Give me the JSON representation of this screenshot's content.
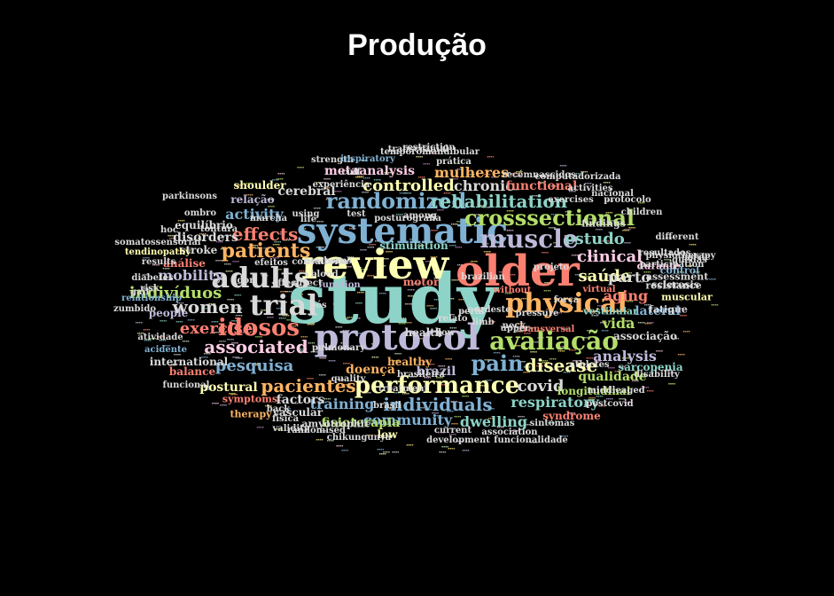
{
  "title": "Produção",
  "palette": {
    "teal": "#8dd3c7",
    "yellow": "#ffffb3",
    "lavender": "#bebada",
    "salmon": "#fb8072",
    "blue": "#80b1d3",
    "orange": "#fdb462",
    "green": "#b3de69",
    "pink": "#fccde5",
    "grey": "#d9d9d9",
    "purple": "#bc80bd",
    "mint": "#ccebc5",
    "gold": "#ffed6f"
  },
  "words": [
    {
      "text": "study",
      "color": "#8dd3c7"
    },
    {
      "text": "review",
      "color": "#ffffb3"
    },
    {
      "text": "older",
      "color": "#fb8072"
    },
    {
      "text": "systematic",
      "color": "#80b1d3"
    },
    {
      "text": "protocol",
      "color": "#bebada"
    },
    {
      "text": "adults",
      "color": "#d9d9d9"
    },
    {
      "text": "physical",
      "color": "#fdb462"
    },
    {
      "text": "avaliação",
      "color": "#b3de69"
    },
    {
      "text": "trial",
      "color": "#d9d9d9"
    },
    {
      "text": "muscle",
      "color": "#bebada"
    },
    {
      "text": "randomized",
      "color": "#80b1d3"
    },
    {
      "text": "crosssectional",
      "color": "#b3de69"
    },
    {
      "text": "performance",
      "color": "#ffffb3"
    },
    {
      "text": "idosos",
      "color": "#fb8072"
    },
    {
      "text": "patients",
      "color": "#fdb462"
    },
    {
      "text": "pain",
      "color": "#80b1d3"
    },
    {
      "text": "associated",
      "color": "#fccde5"
    },
    {
      "text": "rehabilitation",
      "color": "#8dd3c7"
    },
    {
      "text": "individuals",
      "color": "#80b1d3"
    },
    {
      "text": "disease",
      "color": "#ffffb3"
    },
    {
      "text": "clinical",
      "color": "#fccde5"
    },
    {
      "text": "effects",
      "color": "#fb8072"
    },
    {
      "text": "pacientes",
      "color": "#fdb462"
    },
    {
      "text": "controlled",
      "color": "#ffffb3"
    },
    {
      "text": "women",
      "color": "#d9d9d9"
    },
    {
      "text": "pesquisa",
      "color": "#80b1d3"
    },
    {
      "text": "covid",
      "color": "#d9d9d9"
    },
    {
      "text": "estudo",
      "color": "#8dd3c7"
    },
    {
      "text": "saúde",
      "color": "#ffffb3"
    },
    {
      "text": "indivíduos",
      "color": "#b3de69"
    },
    {
      "text": "activity",
      "color": "#80b1d3"
    },
    {
      "text": "exercise",
      "color": "#fb8072"
    },
    {
      "text": "mulheres",
      "color": "#fdb462"
    },
    {
      "text": "respiratory",
      "color": "#8dd3c7"
    },
    {
      "text": "community",
      "color": "#80b1d3"
    },
    {
      "text": "dwelling",
      "color": "#8dd3c7"
    },
    {
      "text": "training",
      "color": "#80b1d3"
    },
    {
      "text": "chronic",
      "color": "#d9d9d9"
    },
    {
      "text": "mobility",
      "color": "#bebada"
    },
    {
      "text": "analysis",
      "color": "#bebada"
    },
    {
      "text": "vida",
      "color": "#b3de69"
    },
    {
      "text": "parto",
      "color": "#d9d9d9"
    },
    {
      "text": "aging",
      "color": "#fb8072"
    },
    {
      "text": "factors",
      "color": "#d9d9d9"
    },
    {
      "text": "doença",
      "color": "#fdb462"
    },
    {
      "text": "cerebral",
      "color": "#d9d9d9"
    },
    {
      "text": "qualidade",
      "color": "#b3de69"
    },
    {
      "text": "fisioterapia",
      "color": "#b3de69"
    },
    {
      "text": "metaanalysis",
      "color": "#fccde5"
    },
    {
      "text": "disorders",
      "color": "#d9d9d9"
    },
    {
      "text": "postural",
      "color": "#ffffb3"
    },
    {
      "text": "lateral",
      "color": "#80b1d3"
    },
    {
      "text": "functional",
      "color": "#fb8072"
    },
    {
      "text": "brazil",
      "color": "#bebada"
    },
    {
      "text": "health",
      "color": "#d9d9d9"
    },
    {
      "text": "people",
      "color": "#bebada"
    },
    {
      "text": "stroke",
      "color": "#d9d9d9"
    },
    {
      "text": "análise",
      "color": "#fb8072"
    },
    {
      "text": "relação",
      "color": "#bebada"
    },
    {
      "text": "equilíbrio",
      "color": "#d9d9d9"
    },
    {
      "text": "shoulder",
      "color": "#ffffb3"
    },
    {
      "text": "associação",
      "color": "#d9d9d9"
    },
    {
      "text": "longitudinal",
      "color": "#b3de69"
    },
    {
      "text": "syndrome",
      "color": "#fb8072"
    },
    {
      "text": "sarcopenia",
      "color": "#8dd3c7"
    },
    {
      "text": "stimulation",
      "color": "#8dd3c7"
    },
    {
      "text": "healthy",
      "color": "#fdb462"
    },
    {
      "text": "motor",
      "color": "#fb8072"
    },
    {
      "text": "low",
      "color": "#ffffb3"
    },
    {
      "text": "amyotrophic",
      "color": "#d9d9d9"
    },
    {
      "text": "vascular",
      "color": "#d9d9d9"
    },
    {
      "text": "international",
      "color": "#d9d9d9"
    },
    {
      "text": "balance",
      "color": "#fb8072"
    },
    {
      "text": "symptoms",
      "color": "#fb8072"
    },
    {
      "text": "therapy",
      "color": "#fdb462"
    },
    {
      "text": "findings",
      "color": "#d9d9d9"
    },
    {
      "text": "vestibular",
      "color": "#8dd3c7"
    },
    {
      "text": "durante",
      "color": "#fccde5"
    },
    {
      "text": "control",
      "color": "#80b1d3"
    },
    {
      "text": "muscular",
      "color": "#ffffb3"
    },
    {
      "text": "sclerosis",
      "color": "#d9d9d9"
    },
    {
      "text": "fatigue",
      "color": "#d9d9d9"
    },
    {
      "text": "assessment",
      "color": "#d9d9d9"
    },
    {
      "text": "resistance",
      "color": "#d9d9d9"
    },
    {
      "text": "virtual",
      "color": "#fb8072"
    },
    {
      "text": "força",
      "color": "#d9d9d9"
    },
    {
      "text": "without",
      "color": "#fb8072"
    },
    {
      "text": "neck",
      "color": "#d9d9d9"
    },
    {
      "text": "brazilian",
      "color": "#d9d9d9"
    },
    {
      "text": "relato",
      "color": "#d9d9d9"
    },
    {
      "text": "flow",
      "color": "#d9d9d9"
    },
    {
      "text": "back",
      "color": "#d9d9d9"
    },
    {
      "text": "current",
      "color": "#d9d9d9"
    },
    {
      "text": "association",
      "color": "#d9d9d9"
    },
    {
      "text": "development",
      "color": "#d9d9d9"
    },
    {
      "text": "funcionalidade",
      "color": "#d9d9d9"
    },
    {
      "text": "chikungunya",
      "color": "#d9d9d9"
    },
    {
      "text": "randomised",
      "color": "#d9d9d9"
    },
    {
      "text": "function",
      "color": "#bebada"
    },
    {
      "text": "blood",
      "color": "#d9d9d9"
    },
    {
      "text": "pós",
      "color": "#d9d9d9"
    },
    {
      "text": "dor",
      "color": "#d9d9d9"
    },
    {
      "text": "tontura",
      "color": "#d9d9d9"
    },
    {
      "text": "ombro",
      "color": "#d9d9d9"
    },
    {
      "text": "parkinsons",
      "color": "#d9d9d9"
    },
    {
      "text": "tendinopathy",
      "color": "#ffffb3"
    },
    {
      "text": "diabetes",
      "color": "#d9d9d9"
    },
    {
      "text": "relationship",
      "color": "#80b1d3"
    },
    {
      "text": "zumbido",
      "color": "#d9d9d9"
    },
    {
      "text": "atividade",
      "color": "#d9d9d9"
    },
    {
      "text": "acidente",
      "color": "#80b1d3"
    },
    {
      "text": "funcional",
      "color": "#d9d9d9"
    },
    {
      "text": "disability",
      "color": "#d9d9d9"
    },
    {
      "text": "postcovid",
      "color": "#d9d9d9"
    },
    {
      "text": "middleaged",
      "color": "#d9d9d9"
    },
    {
      "text": "athletes",
      "color": "#d9d9d9"
    },
    {
      "text": "transversal",
      "color": "#fb8072"
    },
    {
      "text": "pressure",
      "color": "#d9d9d9"
    },
    {
      "text": "upper",
      "color": "#d9d9d9"
    },
    {
      "text": "sintomas",
      "color": "#d9d9d9"
    },
    {
      "text": "brasileira",
      "color": "#d9d9d9"
    },
    {
      "text": "nordeste",
      "color": "#d9d9d9"
    },
    {
      "text": "limb",
      "color": "#d9d9d9"
    },
    {
      "text": "perfil",
      "color": "#d9d9d9"
    },
    {
      "text": "life",
      "color": "#d9d9d9"
    },
    {
      "text": "cuff",
      "color": "#d9d9d9"
    },
    {
      "text": "strength",
      "color": "#d9d9d9"
    },
    {
      "text": "inspiratory",
      "color": "#80b1d3"
    },
    {
      "text": "prática",
      "color": "#d9d9d9"
    },
    {
      "text": "transcranial",
      "color": "#d9d9d9"
    },
    {
      "text": "restriction",
      "color": "#d9d9d9"
    },
    {
      "text": "temporomandibular",
      "color": "#d9d9d9"
    },
    {
      "text": "recémnascidos",
      "color": "#d9d9d9"
    },
    {
      "text": "computadorizada",
      "color": "#d9d9d9"
    },
    {
      "text": "exercises",
      "color": "#d9d9d9"
    },
    {
      "text": "activities",
      "color": "#d9d9d9"
    },
    {
      "text": "protocolo",
      "color": "#d9d9d9"
    },
    {
      "text": "nacional",
      "color": "#d9d9d9"
    },
    {
      "text": "children",
      "color": "#d9d9d9"
    },
    {
      "text": "resultados",
      "color": "#d9d9d9"
    },
    {
      "text": "different",
      "color": "#d9d9d9"
    },
    {
      "text": "physiotherapy",
      "color": "#d9d9d9"
    },
    {
      "text": "participation",
      "color": "#d9d9d9"
    },
    {
      "text": "quedas",
      "color": "#d9d9d9"
    },
    {
      "text": "pelvic",
      "color": "#d9d9d9"
    },
    {
      "text": "projeto",
      "color": "#d9d9d9"
    },
    {
      "text": "experiência",
      "color": "#d9d9d9"
    },
    {
      "text": "posturografia",
      "color": "#d9d9d9"
    },
    {
      "text": "newborns",
      "color": "#d9d9d9"
    },
    {
      "text": "using",
      "color": "#d9d9d9"
    },
    {
      "text": "test",
      "color": "#d9d9d9"
    },
    {
      "text": "among",
      "color": "#d9d9d9"
    },
    {
      "text": "consultoria",
      "color": "#d9d9d9"
    },
    {
      "text": "efeitos",
      "color": "#d9d9d9"
    },
    {
      "text": "somatossensorial",
      "color": "#d9d9d9"
    },
    {
      "text": "results",
      "color": "#d9d9d9"
    },
    {
      "text": "gait",
      "color": "#d9d9d9"
    },
    {
      "text": "risk",
      "color": "#d9d9d9"
    },
    {
      "text": "effect",
      "color": "#d9d9d9"
    },
    {
      "text": "direct",
      "color": "#d9d9d9"
    },
    {
      "text": "pulmonary",
      "color": "#d9d9d9"
    },
    {
      "text": "quality",
      "color": "#d9d9d9"
    },
    {
      "text": "treatment",
      "color": "#d9d9d9"
    },
    {
      "text": "brasil",
      "color": "#d9d9d9"
    },
    {
      "text": "física",
      "color": "#d9d9d9"
    },
    {
      "text": "validity",
      "color": "#d9d9d9"
    },
    {
      "text": "hoc",
      "color": "#d9d9d9"
    },
    {
      "text": "marcha",
      "color": "#d9d9d9"
    },
    {
      "text": "lower",
      "color": "#d9d9d9"
    },
    {
      "text": "parkinson",
      "color": "#d9d9d9"
    },
    {
      "text": "intervention",
      "color": "#d9d9d9"
    },
    {
      "text": "prematuros",
      "color": "#d9d9d9"
    },
    {
      "text": "frailty",
      "color": "#d9d9d9"
    }
  ]
}
